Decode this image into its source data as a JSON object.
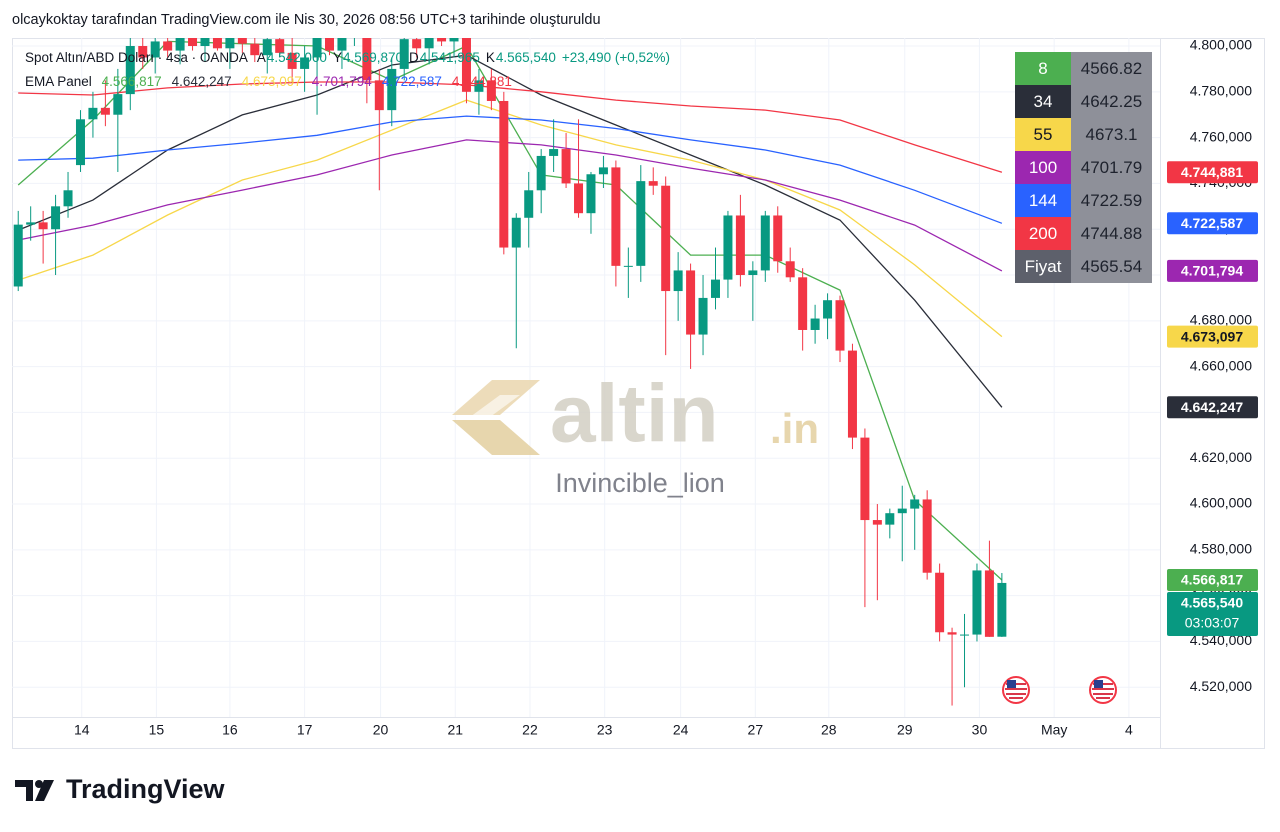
{
  "chart_data": {
    "type": "candlestick",
    "header": "olcaykoktay tarafından TradingView.com ile Nis 30, 2026 08:56 UTC+3 tarihinde oluşturuldu",
    "symbol": "Spot Altın/ABD Doları · 4sa · OANDA",
    "ohlc_labels": [
      {
        "key": "A",
        "value": "4.542,060"
      },
      {
        "key": "Y",
        "value": "4.569,870"
      },
      {
        "key": "D",
        "value": "4.541,965"
      },
      {
        "key": "K",
        "value": "4.565,540"
      }
    ],
    "change": "+23,490 (+0,52%)",
    "indicator": "EMA Panel",
    "up_color": "#089981",
    "down_color": "#f23645",
    "open": [
      4695,
      4722,
      4723,
      4720,
      4730,
      4748,
      4768,
      4773,
      4770,
      4779,
      4800,
      4795,
      4802,
      4798,
      4805,
      4800,
      4806,
      4799,
      4804,
      4801,
      4796,
      4803,
      4797,
      4790,
      4795,
      4804,
      4798,
      4806,
      4808,
      4785,
      4772,
      4790,
      4803,
      4799,
      4806,
      4802,
      4805,
      4780,
      4785,
      4776,
      4712,
      4725,
      4737,
      4752,
      4755,
      4740,
      4727,
      4744,
      4747,
      4704,
      4704,
      4741,
      4739,
      4693,
      4702,
      4674,
      4690,
      4698,
      4726,
      4700,
      4702,
      4726,
      4706,
      4699,
      4676,
      4681,
      4689,
      4667,
      4629,
      4593,
      4591,
      4596,
      4598,
      4602,
      4570,
      4544,
      4543,
      4543,
      4571,
      4542.06
    ],
    "high": [
      4728,
      4730,
      4728,
      4735,
      4745,
      4772,
      4780,
      4785,
      4790,
      4808,
      4808,
      4806,
      4810,
      4809,
      4812,
      4810,
      4812,
      4808,
      4811,
      4809,
      4806,
      4812,
      4805,
      4800,
      4808,
      4810,
      4812,
      4815,
      4812,
      4790,
      4795,
      4808,
      4810,
      4812,
      4815,
      4810,
      4810,
      4790,
      4790,
      4780,
      4727,
      4745,
      4755,
      4768,
      4762,
      4768,
      4745,
      4752,
      4750,
      4712,
      4748,
      4747,
      4743,
      4710,
      4705,
      4700,
      4712,
      4728,
      4735,
      4706,
      4728,
      4730,
      4712,
      4703,
      4687,
      4692,
      4691,
      4670,
      4633,
      4600,
      4598,
      4608,
      4604,
      4606,
      4574,
      4546,
      4552,
      4574,
      4584,
      4569.87
    ],
    "low": [
      4693,
      4715,
      4705,
      4700,
      4725,
      4745,
      4760,
      4765,
      4745,
      4772,
      4790,
      4788,
      4795,
      4792,
      4798,
      4793,
      4798,
      4790,
      4797,
      4793,
      4788,
      4795,
      4784,
      4780,
      4770,
      4796,
      4790,
      4800,
      4775,
      4737,
      4765,
      4785,
      4795,
      4792,
      4800,
      4795,
      4775,
      4770,
      4772,
      4709,
      4668,
      4712,
      4727,
      4745,
      4738,
      4725,
      4718,
      4738,
      4695,
      4690,
      4697,
      4735,
      4665,
      4680,
      4659,
      4665,
      4685,
      4690,
      4695,
      4680,
      4697,
      4701,
      4697,
      4667,
      4670,
      4672,
      4662,
      4624,
      4555,
      4558,
      4585,
      4575,
      4580,
      4567,
      4540,
      4512,
      4520,
      4540,
      4542,
      4541.965
    ],
    "close": [
      4722,
      4723,
      4720,
      4730,
      4737,
      4768,
      4773,
      4770,
      4779,
      4800,
      4795,
      4802,
      4798,
      4805,
      4800,
      4806,
      4799,
      4804,
      4801,
      4796,
      4803,
      4797,
      4790,
      4795,
      4804,
      4798,
      4806,
      4808,
      4785,
      4772,
      4790,
      4803,
      4799,
      4806,
      4802,
      4805,
      4780,
      4785,
      4776,
      4712,
      4725,
      4737,
      4752,
      4755,
      4740,
      4727,
      4744,
      4747,
      4704,
      4704,
      4741,
      4739,
      4693,
      4702,
      4674,
      4690,
      4698,
      4726,
      4700,
      4702,
      4726,
      4706,
      4699,
      4676,
      4681,
      4689,
      4667,
      4629,
      4593,
      4591,
      4596,
      4598,
      4602,
      4570,
      4544,
      4543,
      4543,
      4571,
      4542,
      4565.54
    ],
    "xlim": [
      -0.5,
      91.7
    ],
    "xticks": [
      {
        "value": 5.1,
        "label": "14"
      },
      {
        "value": 11.1,
        "label": "15"
      },
      {
        "value": 17.0,
        "label": "16"
      },
      {
        "value": 23.0,
        "label": "17"
      },
      {
        "value": 29.1,
        "label": "20"
      },
      {
        "value": 35.1,
        "label": "21"
      },
      {
        "value": 41.1,
        "label": "22"
      },
      {
        "value": 47.1,
        "label": "23"
      },
      {
        "value": 53.2,
        "label": "24"
      },
      {
        "value": 59.2,
        "label": "27"
      },
      {
        "value": 65.1,
        "label": "28"
      },
      {
        "value": 71.2,
        "label": "29"
      },
      {
        "value": 77.2,
        "label": "30"
      },
      {
        "value": 83.2,
        "label": "May"
      },
      {
        "value": 89.2,
        "label": "4"
      }
    ],
    "ylim": [
      4507,
      4803.5
    ],
    "yticks": [
      {
        "value": 4520,
        "label": "4.520,000"
      },
      {
        "value": 4540,
        "label": "4.540,000"
      },
      {
        "value": 4560,
        "label": "4.560,000"
      },
      {
        "value": 4580,
        "label": "4.580,000"
      },
      {
        "value": 4600,
        "label": "4.600,000"
      },
      {
        "value": 4620,
        "label": "4.620,000"
      },
      {
        "value": 4640,
        "label": "4.640,000"
      },
      {
        "value": 4660,
        "label": "4.660,000"
      },
      {
        "value": 4680,
        "label": "4.680,000"
      },
      {
        "value": 4700,
        "label": "4.700,000"
      },
      {
        "value": 4720,
        "label": "4.720,000"
      },
      {
        "value": 4740,
        "label": "4.740,000"
      },
      {
        "value": 4760,
        "label": "4.760,000"
      },
      {
        "value": 4780,
        "label": "4.780,000"
      },
      {
        "value": 4800,
        "label": "4.800,000"
      }
    ],
    "grid": true,
    "overlay": {
      "type": "line",
      "x": [
        0,
        6,
        12,
        18,
        24,
        30,
        36,
        42,
        48,
        54,
        60,
        66,
        72,
        79
      ],
      "series": [
        {
          "name": "8",
          "color": "#4caf50",
          "text_color": "#ffffff",
          "table_value": 4566.82,
          "last_label": "4.566,817",
          "values": [
            4739.3,
            4767.7,
            4802,
            4801,
            4800,
            4785,
            4800,
            4743.7,
            4739.3,
            4708.7,
            4708.7,
            4693.4,
            4601.7,
            4566.817
          ]
        },
        {
          "name": "34",
          "color": "#2a2e39",
          "text_color": "#ffffff",
          "table_value": 4642.25,
          "last_label": "4.642,247",
          "values": [
            4719.6,
            4732.7,
            4754.6,
            4769.9,
            4778.6,
            4791.7,
            4796,
            4778.6,
            4765.5,
            4752.4,
            4739.3,
            4724,
            4689,
            4642.247
          ]
        },
        {
          "name": "55",
          "color": "#f7d74a",
          "text_color": "#131722",
          "table_value": 4673.1,
          "last_label": "4.673,097",
          "values": [
            4697.8,
            4708.7,
            4726.2,
            4741.5,
            4750.2,
            4763.3,
            4776.4,
            4765.5,
            4756.8,
            4750.2,
            4741.5,
            4728.4,
            4704.4,
            4673.097
          ]
        },
        {
          "name": "100",
          "color": "#9c27b0",
          "text_color": "#ffffff",
          "table_value": 4701.79,
          "last_label": "4.701,794",
          "values": [
            4715.3,
            4721.8,
            4730.6,
            4737.1,
            4743.7,
            4752.4,
            4759,
            4756.8,
            4752.4,
            4746.7,
            4741.5,
            4732.7,
            4721.8,
            4701.794
          ]
        },
        {
          "name": "144",
          "color": "#2962ff",
          "text_color": "#ffffff",
          "table_value": 4722.59,
          "last_label": "4.722,587",
          "values": [
            4750.2,
            4751,
            4754.6,
            4757.6,
            4761,
            4766.8,
            4769.4,
            4767.7,
            4764,
            4759,
            4754.6,
            4748,
            4737,
            4722.587
          ]
        },
        {
          "name": "200",
          "color": "#f23645",
          "text_color": "#ffffff",
          "table_value": 4744.88,
          "last_label": "4.744,881",
          "values": [
            4779.5,
            4778.6,
            4781.7,
            4783.4,
            4784.3,
            4784.3,
            4783,
            4780,
            4776.4,
            4773.8,
            4772,
            4767.7,
            4756.8,
            4744.881
          ]
        }
      ]
    },
    "price_row": {
      "label": "Fiyat",
      "value": 4565.54
    },
    "last_price_label": "4.565,540",
    "countdown": "03:03:07",
    "watermark": "altin",
    "watermark_suffix": ".in",
    "author": "Invincible_lion",
    "brand": "TradingView"
  }
}
